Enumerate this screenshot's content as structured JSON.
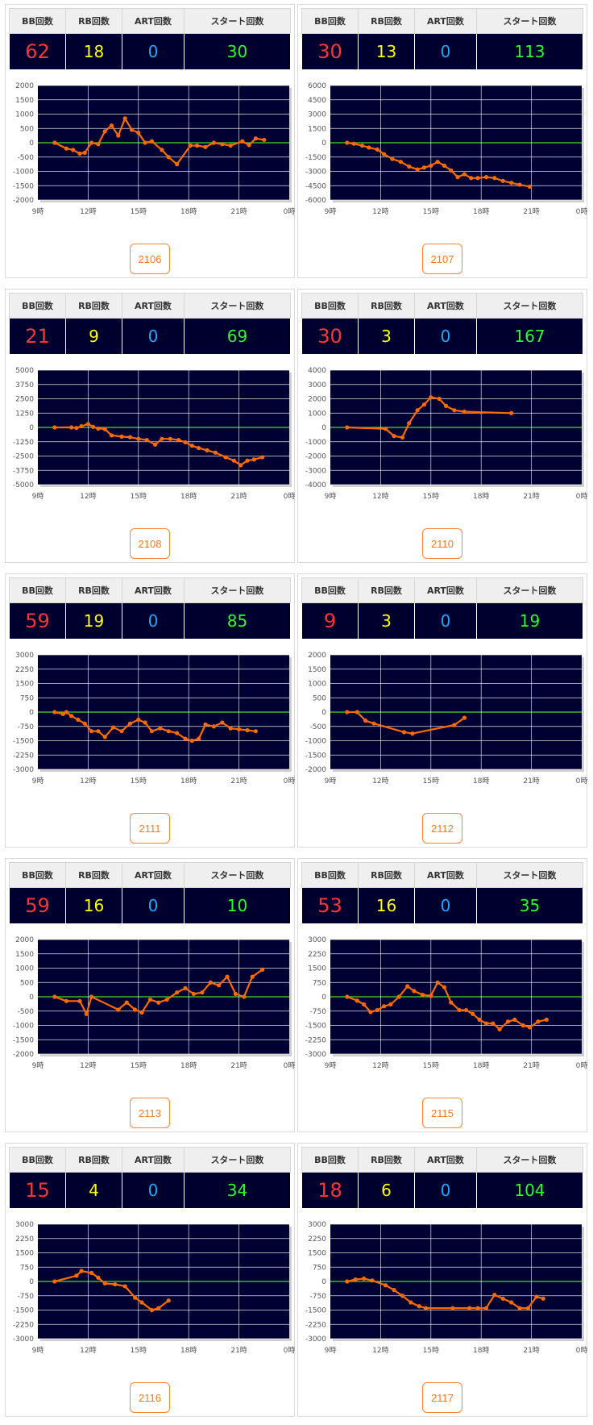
{
  "headers": {
    "bb": "BB回数",
    "rb": "RB回数",
    "art": "ART回数",
    "start": "スタート回数"
  },
  "xticks": [
    "9時",
    "12時",
    "15時",
    "18時",
    "21時",
    "0時"
  ],
  "chart_data": [
    {
      "type": "line",
      "machine": "2106",
      "bb": "62",
      "rb": "18",
      "art": "0",
      "start": "30",
      "ylim": [
        -2000,
        2000
      ],
      "yticks": [
        2000,
        1500,
        1000,
        500,
        0,
        -500,
        -1000,
        -1500,
        -2000
      ],
      "x": [
        10,
        10.7,
        11.1,
        11.5,
        11.8,
        12.2,
        12.6,
        13,
        13.4,
        13.8,
        14.2,
        14.6,
        15,
        15.4,
        15.8,
        16.4,
        16.8,
        17.3,
        18.1,
        18.5,
        19,
        19.5,
        20,
        20.5,
        21.2,
        21.6,
        22,
        22.5
      ],
      "y": [
        0,
        -200,
        -250,
        -380,
        -350,
        0,
        -50,
        400,
        600,
        250,
        850,
        450,
        350,
        0,
        50,
        -250,
        -500,
        -750,
        -100,
        -100,
        -150,
        0,
        -50,
        -100,
        50,
        -80,
        150,
        100
      ]
    },
    {
      "type": "line",
      "machine": "2107",
      "bb": "30",
      "rb": "13",
      "art": "0",
      "start": "113",
      "ylim": [
        -6000,
        6000
      ],
      "yticks": [
        6000,
        4500,
        3000,
        1500,
        0,
        -1500,
        -3000,
        -4500,
        -6000
      ],
      "x": [
        10,
        10.4,
        10.9,
        11.3,
        11.8,
        12.2,
        12.7,
        13.2,
        13.7,
        14.2,
        14.6,
        15,
        15.4,
        15.8,
        16.2,
        16.6,
        17,
        17.4,
        17.8,
        18.3,
        18.8,
        19.3,
        19.8,
        20.3,
        20.9
      ],
      "y": [
        0,
        -100,
        -300,
        -500,
        -700,
        -1200,
        -1700,
        -2000,
        -2500,
        -2800,
        -2600,
        -2400,
        -2000,
        -2400,
        -2900,
        -3600,
        -3300,
        -3700,
        -3700,
        -3600,
        -3700,
        -4000,
        -4200,
        -4400,
        -4600
      ]
    },
    {
      "type": "line",
      "machine": "2108",
      "bb": "21",
      "rb": "9",
      "art": "0",
      "start": "69",
      "ylim": [
        -5000,
        5000
      ],
      "yticks": [
        5000,
        3750,
        2500,
        1250,
        0,
        -1250,
        -2500,
        -3750,
        -5000
      ],
      "x": [
        10,
        11,
        11.3,
        11.6,
        12,
        12.3,
        12.6,
        13,
        13.4,
        14,
        14.5,
        15,
        15.5,
        16,
        16.4,
        16.9,
        17.4,
        17.8,
        18.2,
        18.6,
        19.1,
        19.6,
        20.2,
        20.7,
        21.1,
        21.5,
        21.9,
        22.4
      ],
      "y": [
        0,
        0,
        -50,
        100,
        300,
        50,
        -100,
        -150,
        -700,
        -800,
        -850,
        -1000,
        -1100,
        -1500,
        -1000,
        -1000,
        -1100,
        -1300,
        -1600,
        -1800,
        -2000,
        -2200,
        -2600,
        -2900,
        -3300,
        -2900,
        -2800,
        -2600
      ]
    },
    {
      "type": "line",
      "machine": "2110",
      "bb": "30",
      "rb": "3",
      "art": "0",
      "start": "167",
      "ylim": [
        -4000,
        4000
      ],
      "yticks": [
        4000,
        3000,
        2000,
        1000,
        0,
        -1000,
        -2000,
        -3000,
        -4000
      ],
      "x": [
        10,
        12.3,
        12.8,
        13.3,
        13.7,
        14.2,
        14.6,
        15,
        15.5,
        15.9,
        16.4,
        17,
        19.8
      ],
      "y": [
        0,
        -100,
        -600,
        -700,
        300,
        1200,
        1600,
        2100,
        2000,
        1500,
        1200,
        1100,
        1000
      ]
    },
    {
      "type": "line",
      "machine": "2111",
      "bb": "59",
      "rb": "19",
      "art": "0",
      "start": "85",
      "ylim": [
        -3000,
        3000
      ],
      "yticks": [
        3000,
        2250,
        1500,
        750,
        0,
        -750,
        -1500,
        -2250,
        -3000
      ],
      "x": [
        10,
        10.5,
        10.7,
        11,
        11.4,
        11.8,
        12.2,
        12.6,
        13,
        13.5,
        14,
        14.5,
        15,
        15.4,
        15.8,
        16.3,
        16.8,
        17.3,
        17.8,
        18.2,
        18.6,
        19,
        19.5,
        20,
        20.5,
        21,
        21.5,
        22
      ],
      "y": [
        0,
        -100,
        0,
        -200,
        -400,
        -600,
        -1000,
        -1000,
        -1300,
        -800,
        -1000,
        -600,
        -400,
        -550,
        -1000,
        -850,
        -1000,
        -1100,
        -1400,
        -1500,
        -1400,
        -650,
        -750,
        -550,
        -850,
        -900,
        -950,
        -1000
      ]
    },
    {
      "type": "line",
      "machine": "2112",
      "bb": "9",
      "rb": "3",
      "art": "0",
      "start": "19",
      "ylim": [
        -2000,
        2000
      ],
      "yticks": [
        2000,
        1500,
        1000,
        500,
        0,
        -500,
        -1000,
        -1500,
        -2000
      ],
      "x": [
        10,
        10.6,
        11.1,
        11.6,
        13.4,
        13.9,
        16.4,
        17
      ],
      "y": [
        0,
        0,
        -300,
        -400,
        -700,
        -750,
        -450,
        -200
      ]
    },
    {
      "type": "line",
      "machine": "2113",
      "bb": "59",
      "rb": "16",
      "art": "0",
      "start": "10",
      "ylim": [
        -2000,
        2000
      ],
      "yticks": [
        2000,
        1500,
        1000,
        500,
        0,
        -500,
        -1000,
        -1500,
        -2000
      ],
      "x": [
        10,
        10.7,
        11.5,
        11.9,
        12.2,
        13.8,
        14.3,
        14.8,
        15.2,
        15.7,
        16.2,
        16.7,
        17.3,
        17.8,
        18.3,
        18.8,
        19.3,
        19.8,
        20.3,
        20.8,
        21.3,
        21.8,
        22.4
      ],
      "y": [
        0,
        -150,
        -150,
        -600,
        0,
        -450,
        -200,
        -450,
        -550,
        -100,
        -200,
        -100,
        150,
        300,
        100,
        150,
        500,
        400,
        700,
        100,
        0,
        700,
        950
      ]
    },
    {
      "type": "line",
      "machine": "2115",
      "bb": "53",
      "rb": "16",
      "art": "0",
      "start": "35",
      "ylim": [
        -3000,
        3000
      ],
      "yticks": [
        3000,
        2250,
        1500,
        750,
        0,
        -750,
        -1500,
        -2250,
        -3000
      ],
      "x": [
        10,
        10.6,
        11,
        11.4,
        11.8,
        12.2,
        12.6,
        13.1,
        13.6,
        14,
        14.5,
        15,
        15.4,
        15.8,
        16.2,
        16.7,
        17.1,
        17.5,
        17.9,
        18.3,
        18.7,
        19.1,
        19.6,
        20,
        20.5,
        20.9,
        21.4,
        21.9
      ],
      "y": [
        0,
        -200,
        -400,
        -800,
        -700,
        -500,
        -400,
        0,
        550,
        300,
        100,
        50,
        750,
        500,
        -300,
        -700,
        -700,
        -900,
        -1200,
        -1400,
        -1400,
        -1700,
        -1300,
        -1200,
        -1500,
        -1600,
        -1300,
        -1200
      ]
    },
    {
      "type": "line",
      "machine": "2116",
      "bb": "15",
      "rb": "4",
      "art": "0",
      "start": "34",
      "ylim": [
        -3000,
        3000
      ],
      "yticks": [
        3000,
        2250,
        1500,
        750,
        0,
        -750,
        -1500,
        -2250,
        -3000
      ],
      "x": [
        10,
        11.3,
        11.6,
        12.2,
        12.6,
        13,
        13.6,
        14.2,
        14.8,
        15.2,
        15.8,
        16.2,
        16.8
      ],
      "y": [
        0,
        300,
        550,
        450,
        200,
        -100,
        -150,
        -250,
        -850,
        -1100,
        -1500,
        -1400,
        -1000
      ]
    },
    {
      "type": "line",
      "machine": "2117",
      "bb": "18",
      "rb": "6",
      "art": "0",
      "start": "104",
      "ylim": [
        -3000,
        3000
      ],
      "yticks": [
        3000,
        2250,
        1500,
        750,
        0,
        -750,
        -1500,
        -2250,
        -3000
      ],
      "x": [
        10,
        10.5,
        11,
        11.5,
        12.3,
        12.8,
        13.3,
        13.8,
        14.3,
        14.7,
        16.3,
        17.3,
        17.8,
        18.3,
        18.8,
        19.3,
        19.8,
        20.3,
        20.8,
        21.3,
        21.7
      ],
      "y": [
        0,
        100,
        150,
        50,
        -200,
        -450,
        -750,
        -1100,
        -1300,
        -1400,
        -1400,
        -1400,
        -1400,
        -1400,
        -700,
        -900,
        -1100,
        -1400,
        -1400,
        -800,
        -900
      ]
    }
  ]
}
